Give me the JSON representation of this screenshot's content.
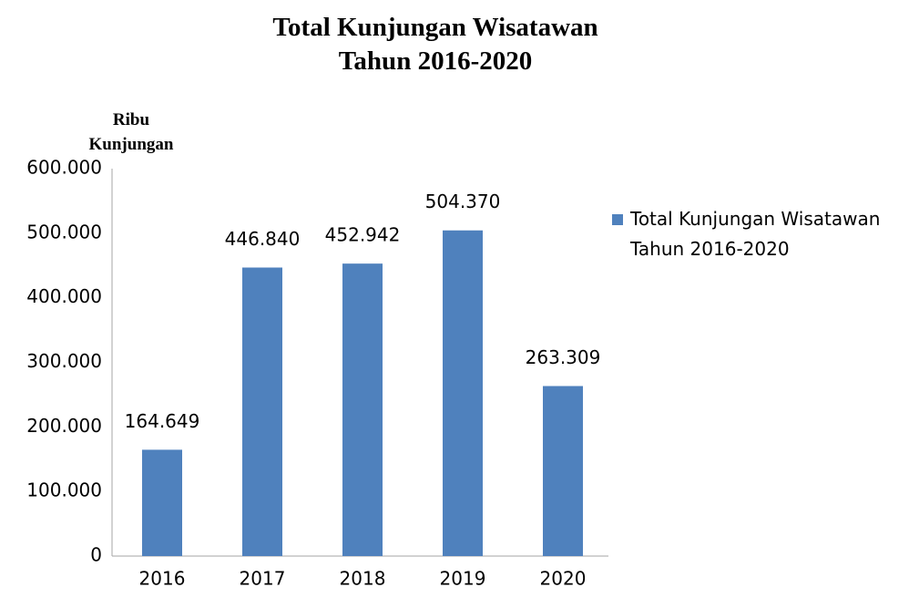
{
  "chart_data": {
    "type": "bar",
    "title": "Total Kunjungan Wisatawan Tahun 2016-2020",
    "y_label": "Ribu Kunjungan",
    "categories": [
      "2016",
      "2017",
      "2018",
      "2019",
      "2020"
    ],
    "series": [
      {
        "name": "Total Kunjungan Wisatawan Tahun 2016-2020",
        "color": "#4f81bd",
        "values": [
          164649,
          446840,
          452942,
          504370,
          263309
        ],
        "value_labels": [
          "164.649",
          "446.840",
          "452.942",
          "504.370",
          "263.309"
        ]
      }
    ],
    "ylim": [
      0,
      600000
    ],
    "yticks": [
      0,
      {
        "value": 100000,
        "label": "100.000"
      },
      {
        "value": 200000,
        "label": "200.000"
      },
      {
        "value": 300000,
        "label": "300.000"
      },
      {
        "value": 400000,
        "label": "400.000"
      },
      {
        "value": 500000,
        "label": "500.000"
      },
      {
        "value": 600000,
        "label": "600.000"
      }
    ],
    "grid": false,
    "legend": "right"
  }
}
